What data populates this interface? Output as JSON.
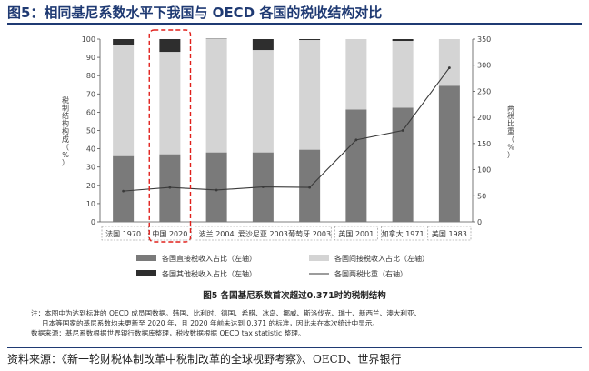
{
  "page_title": "图5：相同基尼系数水平下我国与 OECD 各国的税收结构对比",
  "figure_caption": "图5   各国基尼系数首次超过0.371时的税制结构",
  "notes": [
    "注：本图中为达到标准的 OECD 成员国数据。韩国、比利时、德国、希腊、冰岛、挪威、斯洛伐克、瑞士、新西兰、澳大利亚、",
    "日本等国家的基尼系数均未更新至 2020 年，且 2020 年前未达到 0.371 的标准，因此未在本次统计中显示。",
    "数据来源：基尼系数根据世界银行数据库整理，税收数据根据 OECD tax statistic 整理。"
  ],
  "source": "资料来源：《新一轮财税体制改革中税制改革的全球视野考察》、OECD、世界银行",
  "colors": {
    "direct": "#7a7a7a",
    "indirect": "#d4d4d4",
    "other": "#2e2e2e",
    "line": "#3a3a3a",
    "highlight": "#e0201b",
    "title": "#1f3a73"
  },
  "chart_data": {
    "type": "bar",
    "stacked": true,
    "title": "",
    "categories": [
      "法国 1970",
      "中国 2020",
      "波兰 2004",
      "爱沙尼亚 2003",
      "葡萄牙 2003",
      "英国 2001",
      "加拿大 1971",
      "美国 1983"
    ],
    "ylabel_left": "税制结构构成（%）",
    "ylabel_right": "两税比重（%）",
    "ylim_left": [
      0,
      100
    ],
    "ylim_right": [
      0,
      350
    ],
    "yticks_left": [
      0,
      10,
      20,
      30,
      40,
      50,
      60,
      70,
      80,
      90,
      100
    ],
    "yticks_right": [
      0,
      50,
      100,
      150,
      200,
      250,
      300,
      350
    ],
    "series": [
      {
        "name": "各国直接税收入占比（左轴）",
        "axis": "left",
        "values": [
          36,
          37,
          38,
          38,
          39.5,
          61.5,
          62.5,
          74.5
        ]
      },
      {
        "name": "各国间接税收入占比（左轴）",
        "axis": "left",
        "values": [
          61,
          56,
          62,
          56,
          60,
          38.5,
          36.5,
          25.5
        ]
      },
      {
        "name": "各国其他税收入占比（左轴）",
        "axis": "left",
        "values": [
          3,
          7,
          0.2,
          6,
          0.5,
          0,
          1,
          0
        ]
      },
      {
        "name": "各国两税比重（右轴）",
        "axis": "right",
        "type": "line",
        "values": [
          59,
          66,
          61,
          67,
          66,
          157,
          175,
          295
        ]
      }
    ],
    "highlight_category": "中国 2020",
    "grid": false,
    "legend_position": "bottom"
  }
}
